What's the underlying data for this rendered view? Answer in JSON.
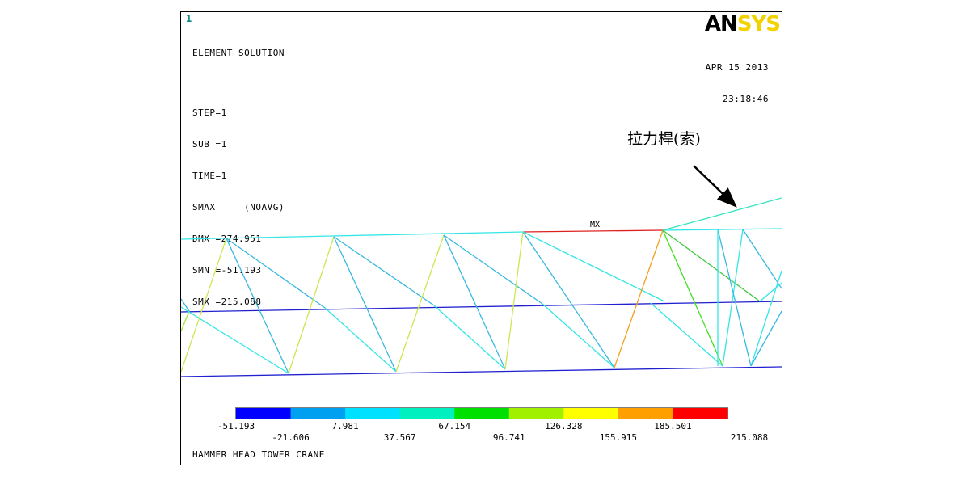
{
  "window_number": "1",
  "logo": {
    "part1": "AN",
    "part2": "SYS"
  },
  "info_lines": [
    "ELEMENT SOLUTION",
    "",
    "STEP=1",
    "SUB =1",
    "TIME=1",
    "SMAX     (NOAVG)",
    "DMX =274.951",
    "SMN =-51.193",
    "SMX =215.088"
  ],
  "date": "APR 15 2013",
  "time": "23:18:46",
  "annotation": "拉力桿(索)",
  "max_marker": "MX",
  "legend": {
    "colors": [
      "#0000ff",
      "#00a0f0",
      "#00e0ff",
      "#00f0c0",
      "#00e000",
      "#a0f000",
      "#ffff00",
      "#ffa000",
      "#ff0000"
    ],
    "labels_top": [
      "-51.193",
      "7.981",
      "67.154",
      "126.328",
      "185.501"
    ],
    "labels_bottom": [
      "-21.606",
      "37.567",
      "96.741",
      "155.915",
      "215.088"
    ]
  },
  "footer": "HAMMER HEAD TOWER CRANE"
}
